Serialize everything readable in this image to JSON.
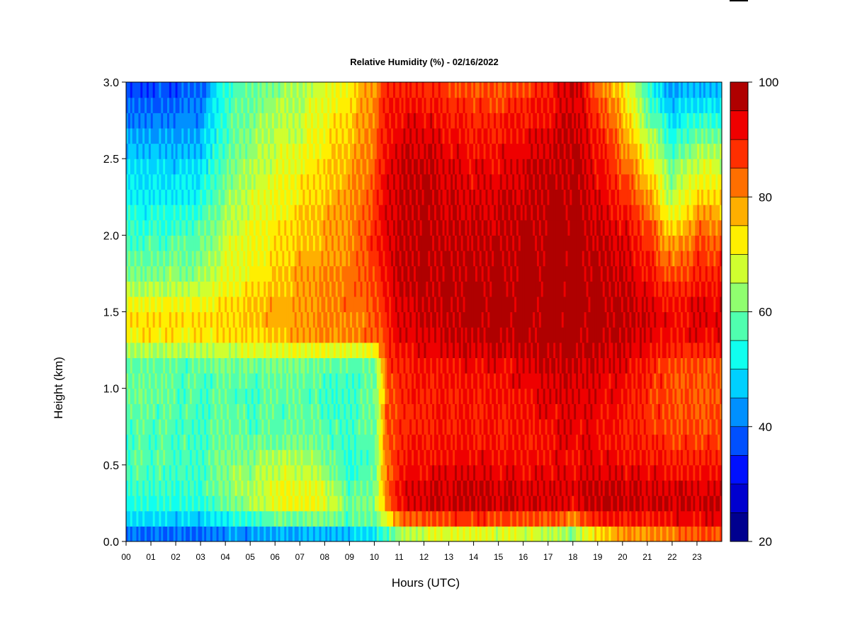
{
  "chart_data": {
    "type": "heatmap",
    "title": "Relative Humidity (%) - 02/16/2022",
    "xlabel": "Hours (UTC)",
    "ylabel": "Height (km)",
    "x_ticks": [
      "00",
      "01",
      "02",
      "03",
      "04",
      "05",
      "06",
      "07",
      "08",
      "09",
      "10",
      "11",
      "12",
      "13",
      "14",
      "15",
      "16",
      "17",
      "18",
      "19",
      "20",
      "21",
      "22",
      "23"
    ],
    "y_ticks": [
      "0.0",
      "0.5",
      "1.0",
      "1.5",
      "2.0",
      "2.5",
      "3.0"
    ],
    "xlim": [
      0,
      24
    ],
    "ylim": [
      0,
      3.0
    ],
    "colorbar": {
      "range": [
        20,
        100
      ],
      "tick_labels": [
        "20",
        "40",
        "60",
        "80",
        "100"
      ],
      "levels": [
        20,
        25,
        30,
        35,
        40,
        45,
        50,
        55,
        60,
        65,
        70,
        75,
        80,
        85,
        90,
        95,
        100
      ],
      "colors": [
        "#00008f",
        "#0000cf",
        "#0010ff",
        "#0050ff",
        "#0090ff",
        "#00d0ff",
        "#10ffef",
        "#50ffaf",
        "#90ff6f",
        "#d0ff2f",
        "#ffef00",
        "#ffaf00",
        "#ff6f00",
        "#ff2f00",
        "#ef0000",
        "#af0000"
      ]
    },
    "height_levels_km": [
      0.0,
      0.1,
      0.2,
      0.3,
      0.5,
      0.7,
      1.0,
      1.2,
      1.3,
      1.5,
      1.7,
      2.0,
      2.2,
      2.5,
      2.8,
      3.0
    ],
    "hours": [
      0,
      1,
      2,
      3,
      4,
      5,
      6,
      7,
      8,
      9,
      10,
      10.5,
      11,
      12,
      13,
      14,
      15,
      16,
      17,
      18,
      19,
      20,
      21,
      22,
      23,
      24
    ],
    "rh_grid_by_hour": [
      [
        35,
        45,
        52,
        55,
        58,
        57,
        60,
        58,
        72,
        74,
        62,
        56,
        52,
        48,
        40,
        36
      ],
      [
        35,
        45,
        52,
        55,
        58,
        57,
        60,
        58,
        72,
        74,
        62,
        56,
        52,
        48,
        40,
        36
      ],
      [
        35,
        44,
        52,
        55,
        57,
        57,
        58,
        58,
        72,
        74,
        63,
        56,
        52,
        47,
        40,
        36
      ],
      [
        36,
        44,
        52,
        55,
        57,
        56,
        57,
        58,
        72,
        74,
        64,
        58,
        54,
        48,
        42,
        38
      ],
      [
        38,
        46,
        58,
        62,
        62,
        60,
        58,
        62,
        73,
        75,
        70,
        66,
        62,
        58,
        56,
        55
      ],
      [
        38,
        48,
        62,
        65,
        62,
        58,
        56,
        62,
        74,
        76,
        72,
        70,
        68,
        64,
        60,
        58
      ],
      [
        40,
        50,
        68,
        70,
        66,
        58,
        58,
        62,
        75,
        78,
        75,
        72,
        70,
        68,
        64,
        62
      ],
      [
        40,
        50,
        70,
        72,
        66,
        60,
        58,
        62,
        78,
        80,
        78,
        76,
        74,
        70,
        66,
        64
      ],
      [
        40,
        52,
        70,
        70,
        62,
        58,
        56,
        60,
        80,
        82,
        80,
        78,
        76,
        74,
        70,
        68
      ],
      [
        40,
        52,
        62,
        58,
        54,
        56,
        56,
        58,
        80,
        82,
        82,
        80,
        80,
        78,
        74,
        72
      ],
      [
        44,
        56,
        64,
        60,
        58,
        58,
        58,
        60,
        82,
        84,
        86,
        88,
        86,
        84,
        82,
        80
      ],
      [
        50,
        62,
        80,
        82,
        82,
        84,
        84,
        86,
        88,
        90,
        92,
        94,
        94,
        92,
        90,
        88
      ],
      [
        56,
        74,
        92,
        94,
        90,
        88,
        88,
        90,
        92,
        94,
        95,
        96,
        96,
        95,
        92,
        88
      ],
      [
        58,
        78,
        94,
        95,
        92,
        90,
        90,
        92,
        94,
        96,
        97,
        97,
        97,
        96,
        92,
        88
      ],
      [
        58,
        78,
        95,
        96,
        92,
        90,
        90,
        92,
        95,
        97,
        97,
        96,
        95,
        94,
        90,
        86
      ],
      [
        58,
        80,
        96,
        97,
        93,
        90,
        90,
        93,
        96,
        98,
        97,
        96,
        94,
        92,
        88,
        84
      ],
      [
        58,
        78,
        95,
        96,
        92,
        90,
        91,
        93,
        97,
        98,
        97,
        96,
        95,
        92,
        88,
        84
      ],
      [
        58,
        78,
        95,
        95,
        92,
        90,
        92,
        94,
        97,
        98,
        98,
        97,
        96,
        94,
        90,
        86
      ],
      [
        58,
        76,
        94,
        95,
        92,
        92,
        94,
        96,
        98,
        98,
        98,
        98,
        97,
        96,
        92,
        88
      ],
      [
        52,
        72,
        92,
        94,
        92,
        93,
        94,
        96,
        98,
        98,
        98,
        98,
        98,
        97,
        96,
        96
      ],
      [
        66,
        84,
        96,
        97,
        93,
        92,
        93,
        95,
        97,
        98,
        97,
        96,
        94,
        92,
        88,
        82
      ],
      [
        72,
        86,
        96,
        97,
        92,
        90,
        92,
        94,
        96,
        97,
        96,
        94,
        90,
        84,
        78,
        72
      ],
      [
        74,
        86,
        95,
        95,
        92,
        88,
        88,
        90,
        94,
        95,
        92,
        88,
        82,
        72,
        60,
        54
      ],
      [
        78,
        88,
        95,
        96,
        90,
        86,
        85,
        86,
        90,
        92,
        86,
        76,
        66,
        58,
        48,
        42
      ],
      [
        80,
        90,
        96,
        95,
        90,
        86,
        84,
        86,
        92,
        94,
        90,
        84,
        76,
        66,
        52,
        44
      ],
      [
        80,
        90,
        96,
        95,
        90,
        86,
        84,
        86,
        92,
        94,
        90,
        84,
        76,
        66,
        52,
        44
      ]
    ],
    "grid": false,
    "legend": "colorbar right"
  }
}
